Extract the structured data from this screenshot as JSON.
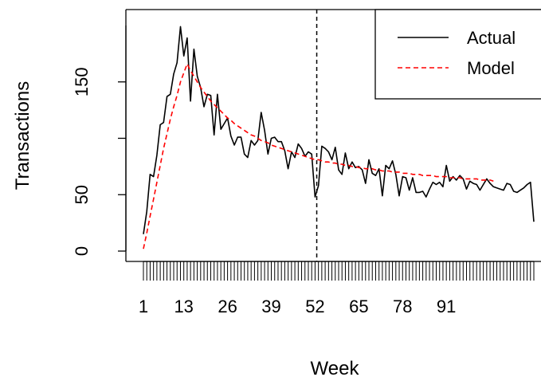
{
  "chart_data": {
    "type": "line",
    "xlabel": "Week",
    "ylabel": "Transactions",
    "x_ticks": [
      1,
      13,
      26,
      39,
      52,
      65,
      78,
      91
    ],
    "y_ticks": [
      0,
      50,
      100,
      150
    ],
    "y_tick_labels": [
      "0",
      "50",
      "",
      "150"
    ],
    "xlim": [
      1,
      105
    ],
    "ylim": [
      0,
      200
    ],
    "x_minor_ticks_every_week": true,
    "vline_x": 52.5,
    "legend_position": "top-right",
    "series": [
      {
        "name": "Actual",
        "color": "#000000",
        "style": "solid",
        "values": [
          15,
          35,
          68,
          66,
          85,
          112,
          114,
          137,
          139,
          157,
          167,
          199,
          173,
          189,
          133,
          179,
          155,
          145,
          128,
          139,
          138,
          103,
          139,
          108,
          113,
          118,
          102,
          94,
          101,
          101,
          86,
          83,
          98,
          94,
          98,
          123,
          107,
          86,
          100,
          101,
          97,
          97,
          89,
          73,
          88,
          83,
          95,
          91,
          84,
          88,
          86,
          48,
          58,
          93,
          91,
          88,
          81,
          92,
          72,
          68,
          87,
          73,
          79,
          74,
          75,
          72,
          60,
          81,
          69,
          67,
          73,
          49,
          76,
          73,
          80,
          68,
          49,
          66,
          65,
          54,
          65,
          52,
          52,
          53,
          48,
          55,
          61,
          59,
          61,
          57,
          76,
          62,
          66,
          63,
          67,
          64,
          55,
          62,
          60,
          59,
          54,
          59,
          64,
          60,
          57,
          56,
          55,
          54,
          60,
          59,
          53,
          52,
          54,
          56,
          59,
          61,
          26
        ]
      },
      {
        "name": "Model",
        "color": "#ff0000",
        "style": "dashed",
        "values": [
          2,
          16,
          31,
          46,
          61,
          76,
          91,
          104,
          117,
          128,
          138,
          150,
          158,
          166,
          160,
          155,
          150,
          145,
          141,
          137,
          133,
          130,
          127,
          124,
          121,
          118,
          116,
          113,
          111,
          109,
          107,
          105,
          103,
          102,
          100,
          98,
          97,
          96,
          94,
          93,
          92,
          91,
          90,
          89,
          88,
          87,
          86,
          85,
          84,
          83,
          82,
          81,
          81,
          80,
          79,
          79,
          78,
          78,
          77,
          77,
          76,
          76,
          75,
          75,
          74,
          74,
          73,
          73,
          73,
          72,
          72,
          71,
          71,
          71,
          70,
          70,
          70,
          69,
          69,
          69,
          68,
          68,
          68,
          67,
          67,
          67,
          67,
          66,
          66,
          66,
          66,
          65,
          65,
          65,
          65,
          64,
          64,
          64,
          64,
          64,
          63,
          63,
          63,
          63,
          62
        ]
      }
    ]
  }
}
